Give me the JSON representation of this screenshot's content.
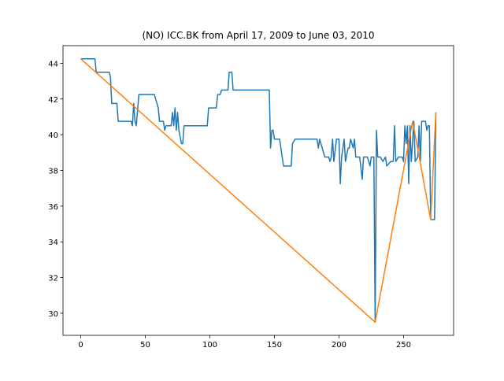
{
  "chart_data": {
    "type": "line",
    "title": "(NO) ICC.BK from April 17, 2009 to June 03, 2010",
    "series": [
      {
        "color": "#1f77b4",
        "x": [
          0,
          11,
          12,
          22,
          23,
          24,
          28,
          29,
          39,
          40,
          41,
          42,
          43,
          45,
          57,
          60,
          61,
          64,
          65,
          66,
          70,
          71,
          72,
          73,
          74,
          75,
          76,
          78,
          79,
          80,
          98,
          99,
          105,
          106,
          108,
          109,
          114,
          115,
          117,
          118,
          146,
          147,
          148,
          149,
          150,
          154,
          156,
          157,
          163,
          164,
          166,
          183,
          184,
          185,
          187,
          189,
          192,
          193,
          194,
          195,
          196,
          198,
          200,
          201,
          202,
          204,
          205,
          207,
          208,
          209,
          211,
          212,
          213,
          216,
          218,
          219,
          222,
          224,
          225,
          227,
          228,
          229,
          230,
          232,
          234,
          236,
          237,
          240,
          242,
          243,
          244,
          246,
          249,
          250,
          251,
          252,
          253,
          254,
          255,
          256,
          258,
          259,
          261,
          262,
          263,
          264,
          267,
          268,
          269,
          270,
          271,
          274,
          275
        ],
        "values": [
          44.25,
          44.25,
          43.5,
          43.5,
          43.25,
          41.75,
          41.75,
          40.75,
          40.75,
          40.5,
          41.75,
          40.75,
          40.5,
          42.25,
          42.25,
          41.5,
          40.75,
          40.75,
          40.25,
          40.5,
          40.5,
          41.25,
          40.5,
          41.5,
          40.25,
          41.25,
          40.25,
          39.5,
          39.5,
          40.5,
          40.5,
          41.5,
          41.5,
          42.25,
          42.25,
          42.5,
          42.5,
          43.5,
          43.5,
          42.5,
          42.5,
          39.25,
          40.25,
          40.25,
          39.75,
          39.75,
          38.75,
          38.25,
          38.25,
          39.5,
          39.75,
          39.75,
          39.25,
          39.75,
          39.25,
          38.75,
          38.75,
          38.5,
          38.75,
          39.75,
          38.5,
          39.75,
          39.75,
          37.25,
          38.75,
          39.75,
          38.5,
          39.25,
          39.25,
          39.75,
          39.25,
          39.75,
          38.75,
          38.75,
          37.5,
          38.75,
          38.75,
          38.25,
          38.75,
          38.75,
          29.5,
          40.25,
          38.75,
          38.75,
          38.5,
          38.75,
          38.25,
          38.5,
          38.5,
          40.5,
          38.5,
          38.75,
          38.75,
          38.5,
          40.5,
          39.5,
          40.5,
          37.25,
          40.5,
          38.5,
          40.75,
          38.5,
          38.75,
          40.5,
          38.5,
          40.75,
          40.75,
          40.25,
          40.5,
          40.5,
          35.25,
          35.25,
          41.25
        ]
      },
      {
        "color": "#ff7f0e",
        "x": [
          0,
          228,
          257,
          271,
          275
        ],
        "values": [
          44.25,
          29.5,
          40.75,
          35.25,
          41.25
        ]
      }
    ],
    "xlim": [
      -13.75,
      288.75
    ],
    "xticks": [
      0,
      50,
      100,
      150,
      200,
      250
    ],
    "ylim": [
      28.7625,
      44.9875
    ],
    "yticks": [
      30,
      32,
      34,
      36,
      38,
      40,
      42,
      44
    ]
  }
}
